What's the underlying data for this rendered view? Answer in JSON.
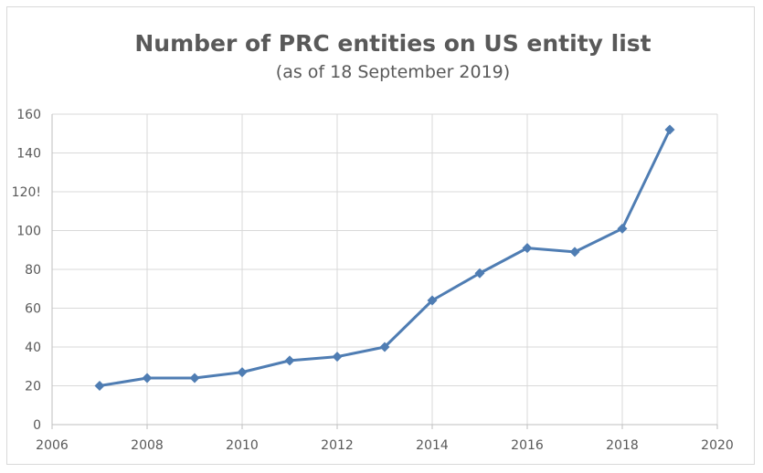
{
  "chart_data": {
    "type": "line",
    "title": "Number of PRC entities on US entity list",
    "subtitle": "(as of 18 September 2019)",
    "xlim": [
      2006,
      2020
    ],
    "ylim": [
      0,
      160
    ],
    "x_ticks": [
      "2006",
      "2008",
      "2010",
      "2012",
      "2014",
      "2016",
      "2018",
      "2020"
    ],
    "y_ticks": [
      "0",
      "20",
      "40",
      "60",
      "80",
      "100",
      "120!",
      "140",
      "160"
    ],
    "grid": true,
    "legend": "none",
    "series": [
      {
        "color": "#4f7db3",
        "marker": "diamond",
        "x": [
          2007,
          2008,
          2009,
          2010,
          2011,
          2012,
          2013,
          2014,
          2015,
          2016,
          2017,
          2018,
          2019
        ],
        "values": [
          20,
          24,
          24,
          27,
          33,
          35,
          40,
          64,
          78,
          91,
          89,
          101,
          152
        ]
      }
    ]
  }
}
